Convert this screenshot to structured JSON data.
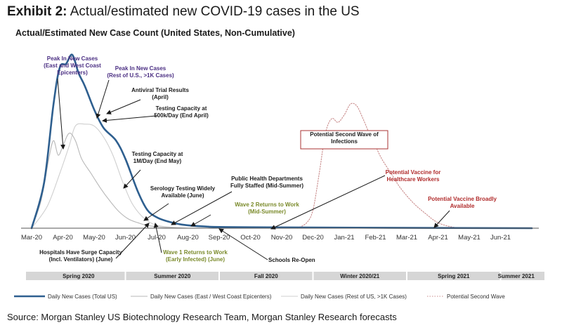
{
  "header": {
    "exhibit_label": "Exhibit 2:",
    "exhibit_title": "Actual/estimated new COVID-19 cases in the US",
    "chart_title": "Actual/Estimated New Case Count (United States, Non-Cumulative)"
  },
  "source": "Source: Morgan Stanley US Biotechnology Research Team, Morgan Stanley Research forecasts",
  "colors": {
    "total": "#2e5f8f",
    "east_west": "#b7b7b7",
    "rest": "#cfcfcf",
    "second_wave": "#c98b8b",
    "annotation_purple": "#4b2f83",
    "annotation_olive": "#7a8a2a",
    "annotation_red": "#b02a2a",
    "season_band": "#d6d6d6"
  },
  "chart_data": {
    "type": "line",
    "x_labels": [
      "Mar-20",
      "Apr-20",
      "May-20",
      "Jun-20",
      "Jul-20",
      "Aug-20",
      "Sep-20",
      "Oct-20",
      "Nov-20",
      "Dec-20",
      "Jan-21",
      "Feb-21",
      "Mar-21",
      "Apr-21",
      "May-21",
      "Jun-21"
    ],
    "x_range": [
      0,
      16
    ],
    "y_range": [
      0,
      100
    ],
    "series": [
      {
        "name": "Daily New Cases (Total US)",
        "key": "total",
        "style": "thick",
        "points": [
          [
            0,
            0
          ],
          [
            0.4,
            25
          ],
          [
            0.7,
            68
          ],
          [
            0.9,
            88
          ],
          [
            1.1,
            90
          ],
          [
            1.3,
            95
          ],
          [
            1.5,
            85
          ],
          [
            1.7,
            78
          ],
          [
            2.0,
            65
          ],
          [
            2.3,
            55
          ],
          [
            2.7,
            48
          ],
          [
            3.0,
            38
          ],
          [
            3.4,
            20
          ],
          [
            3.7,
            10
          ],
          [
            4.0,
            6
          ],
          [
            4.3,
            4
          ],
          [
            4.8,
            2
          ],
          [
            5.5,
            1
          ],
          [
            7,
            0.5
          ],
          [
            16,
            0
          ]
        ]
      },
      {
        "name": "Daily New Cases (East / West Coast Epicenters)",
        "key": "east_west",
        "style": "thin",
        "points": [
          [
            0,
            0
          ],
          [
            0.3,
            15
          ],
          [
            0.55,
            38
          ],
          [
            0.7,
            48
          ],
          [
            0.85,
            40
          ],
          [
            1.0,
            45
          ],
          [
            1.2,
            52
          ],
          [
            1.4,
            48
          ],
          [
            1.6,
            38
          ],
          [
            1.9,
            30
          ],
          [
            2.2,
            22
          ],
          [
            2.5,
            15
          ],
          [
            2.8,
            9
          ],
          [
            3.1,
            5
          ],
          [
            3.4,
            3
          ],
          [
            3.7,
            1.5
          ],
          [
            4.2,
            0.5
          ],
          [
            5,
            0
          ]
        ]
      },
      {
        "name": "Daily New Cases (Rest of US, >1K Cases)",
        "key": "rest",
        "style": "thin",
        "points": [
          [
            0,
            0
          ],
          [
            0.5,
            12
          ],
          [
            0.9,
            30
          ],
          [
            1.2,
            45
          ],
          [
            1.4,
            56
          ],
          [
            1.7,
            57
          ],
          [
            2.0,
            56
          ],
          [
            2.3,
            50
          ],
          [
            2.6,
            40
          ],
          [
            2.9,
            26
          ],
          [
            3.2,
            14
          ],
          [
            3.5,
            7
          ],
          [
            3.8,
            3
          ],
          [
            4.2,
            1
          ],
          [
            5,
            0
          ]
        ]
      },
      {
        "name": "Potential Second Wave",
        "key": "second_wave",
        "style": "dotted",
        "points": [
          [
            8.5,
            0
          ],
          [
            8.8,
            3
          ],
          [
            9.0,
            10
          ],
          [
            9.2,
            30
          ],
          [
            9.4,
            52
          ],
          [
            9.6,
            60
          ],
          [
            9.8,
            58
          ],
          [
            10.0,
            62
          ],
          [
            10.2,
            68
          ],
          [
            10.4,
            67
          ],
          [
            10.6,
            60
          ],
          [
            10.8,
            52
          ],
          [
            11.0,
            45
          ],
          [
            11.2,
            38
          ],
          [
            11.5,
            30
          ],
          [
            11.8,
            22
          ],
          [
            12.2,
            14
          ],
          [
            12.6,
            8
          ],
          [
            13.0,
            3
          ],
          [
            13.5,
            0.5
          ],
          [
            14,
            0
          ]
        ]
      }
    ],
    "seasons": [
      {
        "label": "Spring 2020",
        "from": 0,
        "to": 3
      },
      {
        "label": "Summer 2020",
        "from": 3,
        "to": 6
      },
      {
        "label": "Fall 2020",
        "from": 6,
        "to": 9
      },
      {
        "label": "Winter 2020/21",
        "from": 9,
        "to": 12
      },
      {
        "label": "Spring 2021",
        "from": 12,
        "to": 15
      },
      {
        "label": "Summer 2021",
        "from": 15,
        "to": 16
      }
    ],
    "annotations": [
      {
        "key": "peak_east",
        "lines": [
          "Peak In New Cases",
          "(East and West Coast",
          "Epicenters)"
        ],
        "color": "annotation_purple",
        "bold": true,
        "anchor": "middle"
      },
      {
        "key": "peak_rest",
        "lines": [
          "Peak In New Cases",
          "(Rest of U.S., >1K Cases)"
        ],
        "color": "annotation_purple",
        "bold": true,
        "anchor": "middle"
      },
      {
        "key": "antiviral",
        "lines": [
          "Antiviral Trial Results",
          "(April)"
        ],
        "color": "text",
        "bold": true,
        "anchor": "middle"
      },
      {
        "key": "testing_500k",
        "lines": [
          "Testing Capacity at",
          "500k/Day (End April)"
        ],
        "color": "text",
        "bold": true,
        "anchor": "middle"
      },
      {
        "key": "testing_1m",
        "lines": [
          "Testing Capacity at",
          "1M/Day (End May)"
        ],
        "color": "text",
        "bold": true,
        "anchor": "middle"
      },
      {
        "key": "serology",
        "lines": [
          "Serology Testing Widely",
          "Available (June)"
        ],
        "color": "text",
        "bold": true,
        "anchor": "middle"
      },
      {
        "key": "public_health",
        "lines": [
          "Public Health Departments",
          "Fully Staffed (Mid-Summer)"
        ],
        "color": "text",
        "bold": true,
        "anchor": "middle"
      },
      {
        "key": "wave2",
        "lines": [
          "Wave 2 Returns to Work",
          "(Mid-Summer)"
        ],
        "color": "annotation_olive",
        "bold": true,
        "anchor": "middle"
      },
      {
        "key": "second_wave_box",
        "lines": [
          "Potential Second Wave of",
          "Infections"
        ],
        "color": "text",
        "bold": true,
        "anchor": "middle"
      },
      {
        "key": "vaccine_hcw",
        "lines": [
          "Potential Vaccine for",
          "Healthcare Workers"
        ],
        "color": "annotation_red",
        "bold": true,
        "anchor": "middle"
      },
      {
        "key": "vaccine_broad",
        "lines": [
          "Potential Vaccine Broadly",
          "Available"
        ],
        "color": "annotation_red",
        "bold": true,
        "anchor": "middle"
      },
      {
        "key": "hospitals",
        "lines": [
          "Hospitals Have Surge Capacity",
          "(Incl. Ventilators) (June)"
        ],
        "color": "text",
        "bold": true,
        "anchor": "middle"
      },
      {
        "key": "wave1",
        "lines": [
          "Wave 1 Returns to Work",
          "(Early Infected) (June)"
        ],
        "color": "annotation_olive",
        "bold": true,
        "anchor": "middle"
      },
      {
        "key": "schools",
        "lines": [
          "Schools Re-Open"
        ],
        "color": "text",
        "bold": true,
        "anchor": "start"
      }
    ]
  }
}
